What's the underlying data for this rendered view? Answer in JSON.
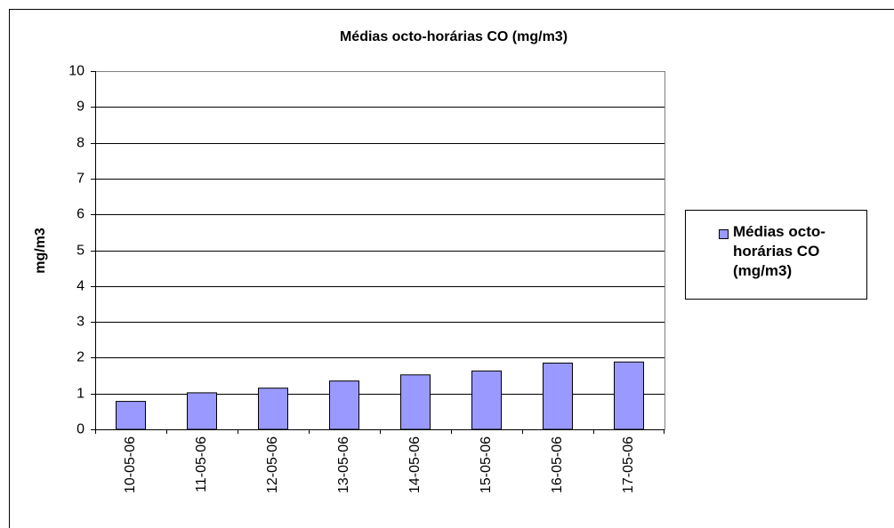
{
  "chart_data": {
    "type": "bar",
    "title": "Médias octo-horárias CO (mg/m3)",
    "y_label": "mg/m3",
    "categories": [
      "10-05-06",
      "11-05-06",
      "12-05-06",
      "13-05-06",
      "14-05-06",
      "15-05-06",
      "16-05-06",
      "17-05-06"
    ],
    "series": [
      {
        "name": "Médias octo-horárias CO (mg/m3)",
        "color": "#9999ff",
        "values": [
          0.78,
          1.02,
          1.15,
          1.35,
          1.52,
          1.63,
          1.85,
          1.88
        ]
      }
    ],
    "ylim": [
      0,
      10
    ],
    "yticks": [
      0,
      1,
      2,
      3,
      4,
      5,
      6,
      7,
      8,
      9,
      10
    ],
    "grid": true,
    "legend": "right"
  }
}
